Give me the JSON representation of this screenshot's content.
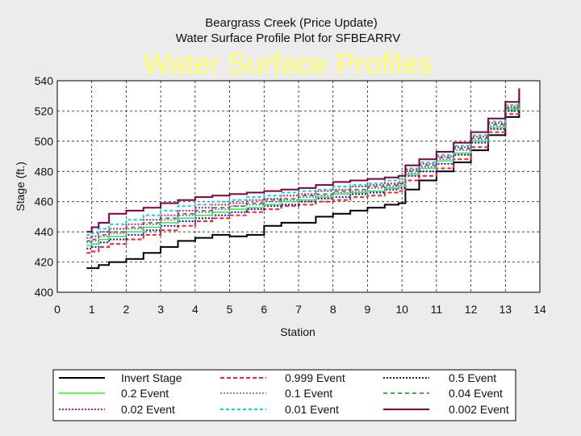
{
  "chart_data": {
    "type": "line",
    "title": "Beargrass Creek (Price Update)",
    "subtitle": "Water Surface Profile Plot for SFBEARRV",
    "overlay_title": "Water Surface Profiles",
    "xlabel": "Station",
    "ylabel": "Stage (ft.)",
    "xlim": [
      0,
      14
    ],
    "ylim": [
      400,
      540
    ],
    "xticks": [
      "0",
      "1",
      "2",
      "3",
      "4",
      "5",
      "6",
      "7",
      "8",
      "9",
      "10",
      "11",
      "12",
      "13",
      "14"
    ],
    "yticks": [
      "400",
      "420",
      "440",
      "460",
      "480",
      "500",
      "520",
      "540"
    ],
    "grid": true,
    "x": [
      0.85,
      1.0,
      1.2,
      1.5,
      2.0,
      2.5,
      3.0,
      3.5,
      4.0,
      4.5,
      5.0,
      5.5,
      6.0,
      6.5,
      7.0,
      7.5,
      8.0,
      8.5,
      9.0,
      9.5,
      9.9,
      10.1,
      10.5,
      11.0,
      11.5,
      12.0,
      12.5,
      13.0,
      13.4
    ],
    "series": [
      {
        "name": "Invert Stage",
        "color": "#000000",
        "dash": "",
        "width": 2,
        "values": [
          416,
          416,
          418,
          420,
          422,
          426,
          430,
          434,
          436,
          438,
          437,
          438,
          444,
          446,
          446,
          450,
          452,
          454,
          456,
          458,
          459,
          468,
          474,
          480,
          486,
          494,
          504,
          516,
          528
        ]
      },
      {
        "name": "0.999 Event",
        "color": "#ff2020",
        "dash": "5,3",
        "width": 2,
        "values": [
          426,
          427,
          430,
          432,
          435,
          438,
          441,
          444,
          447,
          449,
          451,
          453,
          455,
          457,
          458,
          460,
          461,
          463,
          464,
          466,
          467,
          474,
          477,
          482,
          488,
          496,
          506,
          518,
          530
        ]
      },
      {
        "name": "0.5 Event",
        "color": "#1010cc",
        "dash": "2,2",
        "width": 2,
        "values": [
          429,
          430,
          433,
          435,
          438,
          441,
          444,
          447,
          449,
          451,
          453,
          455,
          457,
          458,
          460,
          462,
          463,
          465,
          466,
          468,
          469,
          477,
          480,
          485,
          491,
          499,
          508,
          520,
          532
        ]
      },
      {
        "name": "0.2 Event",
        "color": "#30ee30",
        "dash": "",
        "width": 1.5,
        "values": [
          431,
          432,
          435,
          437,
          440,
          443,
          446,
          449,
          451,
          453,
          455,
          456,
          458,
          460,
          461,
          463,
          465,
          466,
          467,
          469,
          470,
          478,
          482,
          487,
          492,
          500,
          509,
          521,
          532
        ]
      },
      {
        "name": "0.1 Event",
        "color": "#8844ee",
        "dash": "2,2",
        "width": 1.5,
        "values": [
          433,
          434,
          437,
          439,
          442,
          445,
          448,
          451,
          453,
          455,
          457,
          458,
          460,
          461,
          463,
          464,
          466,
          467,
          469,
          470,
          471,
          479,
          483,
          488,
          494,
          501,
          510,
          522,
          533
        ]
      },
      {
        "name": "0.04 Event",
        "color": "#118811",
        "dash": "5,4",
        "width": 1.5,
        "values": [
          434,
          435,
          438,
          440,
          443,
          446,
          449,
          452,
          454,
          456,
          457,
          459,
          461,
          462,
          464,
          465,
          467,
          468,
          470,
          471,
          472,
          480,
          484,
          489,
          495,
          502,
          511,
          522,
          533
        ]
      },
      {
        "name": "0.02 Event",
        "color": "#ee1177",
        "dash": "2,2",
        "width": 2,
        "values": [
          436,
          437,
          440,
          442,
          445,
          448,
          451,
          454,
          456,
          458,
          459,
          461,
          462,
          464,
          465,
          467,
          468,
          470,
          471,
          472,
          473,
          481,
          485,
          490,
          496,
          503,
          512,
          523,
          533
        ]
      },
      {
        "name": "0.01 Event",
        "color": "#00dddd",
        "dash": "4,3",
        "width": 2,
        "values": [
          438,
          439,
          442,
          445,
          448,
          451,
          454,
          457,
          458,
          460,
          461,
          463,
          464,
          466,
          467,
          468,
          470,
          471,
          472,
          474,
          475,
          482,
          486,
          491,
          497,
          504,
          513,
          524,
          534
        ]
      },
      {
        "name": "0.002 Event",
        "color": "#800040",
        "dash": "",
        "width": 2,
        "values": [
          440,
          443,
          446,
          452,
          454,
          456,
          459,
          461,
          463,
          464,
          465,
          466,
          467,
          468,
          469,
          471,
          473,
          474,
          475,
          476,
          477,
          484,
          488,
          493,
          499,
          506,
          515,
          526,
          535
        ]
      }
    ],
    "legend": {
      "placement": "bottom",
      "rows": [
        [
          "Invert Stage",
          "0.999 Event",
          "0.5 Event"
        ],
        [
          "0.2 Event",
          "0.1 Event",
          "0.04 Event"
        ],
        [
          "0.02 Event",
          "0.01 Event",
          "0.002 Event"
        ]
      ]
    }
  }
}
